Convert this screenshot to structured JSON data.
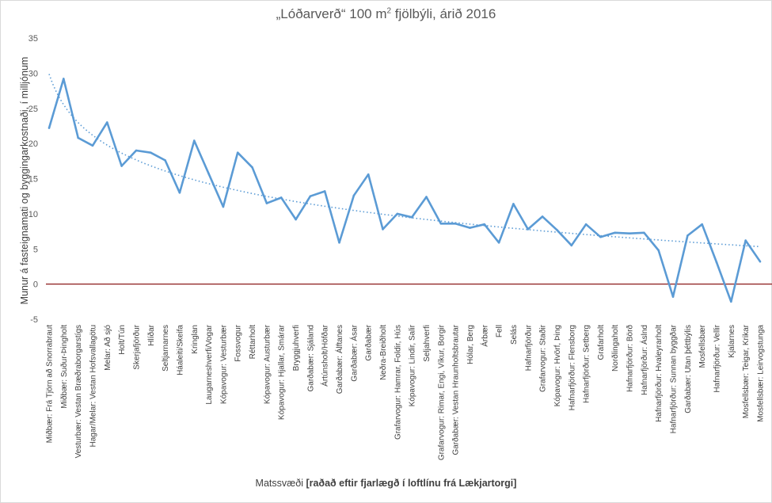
{
  "title_main": "„Lóðarverð“ 100 m",
  "title_sup": "2",
  "title_rest": " fjölbýli, árið 2016",
  "xlabel_plain": "Matssvæði ",
  "xlabel_bold": "[raðað eftir fjarlægð  í loftlínu frá Lækjartorgi]",
  "ylabel": "Munur á fasteignamati og byggingarkostnaði, í milljónum",
  "colors": {
    "line": "#5b9bd5",
    "trend": "#5b9bd5",
    "zero": "#8b1a1a",
    "text": "#595959"
  },
  "chart_data": {
    "type": "line",
    "title": "„Lóðarverð“ 100 m² fjölbýli, árið 2016",
    "xlabel": "Matssvæði [raðað eftir fjarlægð  í loftlínu frá Lækjartorgi]",
    "ylabel": "Munur á fasteignamati og byggingarkostnaði, í milljónum",
    "ylim": [
      -5,
      35
    ],
    "yticks": [
      -5,
      0,
      5,
      10,
      15,
      20,
      25,
      30,
      35
    ],
    "grid": false,
    "trendline": "logarithmic (dotted)",
    "categories": [
      "Miðbær: Frá Tjörn að Snorrabraut",
      "Miðbær: Suður-Þingholt",
      "Vesturbær: Vestan Bræðraborgarstígs",
      "Hagar/Melar: Vestan Hofsvallagötu",
      "Melar: Að sjó",
      "Holt/Tún",
      "Skerjafjörður",
      "Hlíðar",
      "Seltjarnarnes",
      "Háaleiti/Skeifa",
      "Kringlan",
      "Laugarneshverfi/Vogar",
      "Kópavogur: Vesturbær",
      "Fossvogur",
      "Réttarholt",
      "Kópavogur: Austurbær",
      "Kópavogur: Hjallar, Smárar",
      "Bryggjuhverfi",
      "Garðabær: Sjáland",
      "Ártúnsholt/Höfðar",
      "Garðabær: Álftanes",
      "Garðabær: Ásar",
      "Garðabær",
      "Neðra-Breiðholt",
      "Grafarvogur: Hamrar, Foldir, Hús",
      "Kópavogur: Lindir, Salir",
      "Seljahverfi",
      "Grafarvogur: Rimar, Engi, Víkur, Borgir",
      "Garðabær: Vestan Hraunholtsbrautar",
      "Hólar, Berg",
      "Árbær",
      "Fell",
      "Selás",
      "Hafnarfjörður",
      "Grafarvogur: Staðir",
      "Kópavogur: Hvörf, Þing",
      "Hafnarfjörður: Flensborg",
      "Hafnarfjörður: Setberg",
      "Grafarholt",
      "Norðlingaholt",
      "Hafnarfjörður: Börð",
      "Hafnarfjörður: Áslnd",
      "Hafnarfjörður: Hvaleyrarholt",
      "Hafnarfjörður: Sunnan byggðar",
      "Garðabær: Utan þéttbýlis",
      "Mosfellsbær",
      "Hafnarfjörður: Vellir",
      "Kjalarnes",
      "Mosfellsbær: Teigar, Krikar",
      "Mosfellsbær: Leirvogstunga"
    ],
    "series": [
      {
        "values": [
          22.2,
          29.2,
          20.8,
          19.7,
          23.0,
          16.8,
          19.0,
          18.7,
          17.6,
          13.0,
          20.4,
          15.7,
          11.0,
          18.7,
          16.6,
          11.5,
          12.3,
          9.2,
          12.5,
          13.2,
          5.9,
          12.6,
          15.6,
          7.8,
          10.0,
          9.5,
          12.4,
          8.6,
          8.6,
          8.0,
          8.5,
          5.9,
          11.4,
          7.8,
          9.6,
          7.7,
          5.5,
          8.5,
          6.7,
          7.3,
          7.2,
          7.3,
          4.8,
          -1.8,
          6.9,
          8.5,
          3.1,
          -2.5,
          6.2,
          3.2
        ]
      }
    ]
  }
}
